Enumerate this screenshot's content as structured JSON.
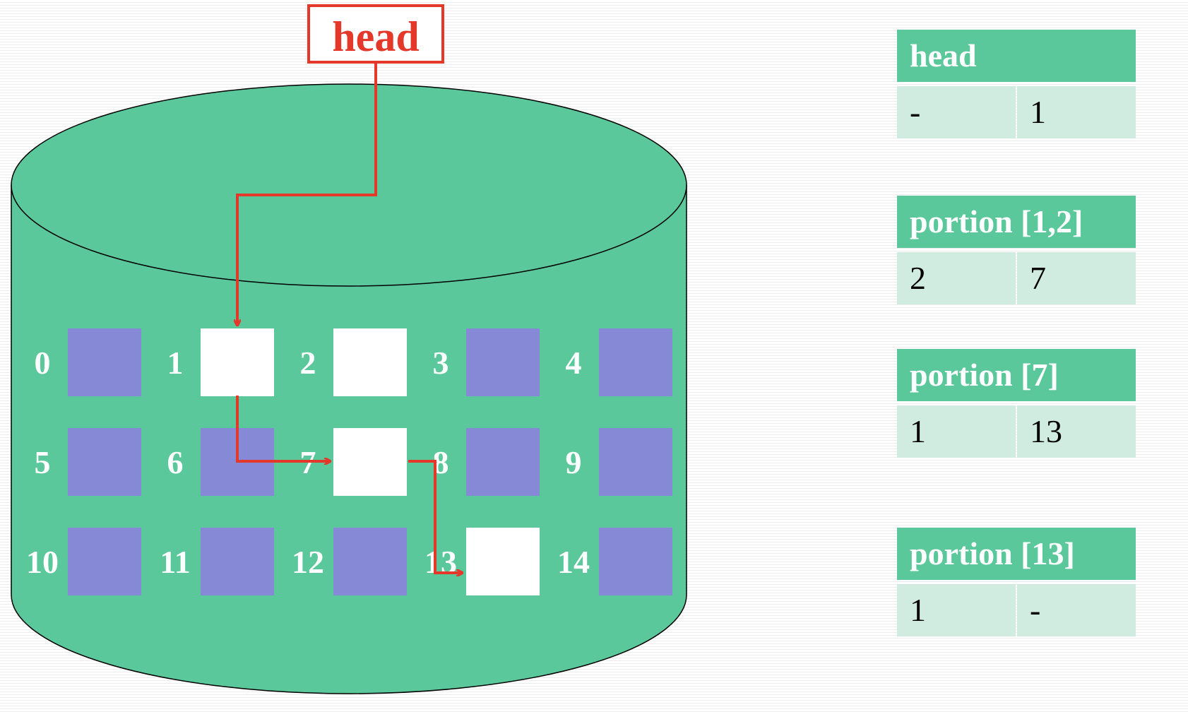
{
  "head_label": "head",
  "blocks": [
    {
      "label": "0",
      "free": false
    },
    {
      "label": "1",
      "free": true
    },
    {
      "label": "2",
      "free": true
    },
    {
      "label": "3",
      "free": false
    },
    {
      "label": "4",
      "free": false
    },
    {
      "label": "5",
      "free": false
    },
    {
      "label": "6",
      "free": false
    },
    {
      "label": "7",
      "free": true
    },
    {
      "label": "8",
      "free": false
    },
    {
      "label": "9",
      "free": false
    },
    {
      "label": "10",
      "free": false
    },
    {
      "label": "11",
      "free": false
    },
    {
      "label": "12",
      "free": false
    },
    {
      "label": "13",
      "free": true
    },
    {
      "label": "14",
      "free": false
    }
  ],
  "tables": [
    {
      "title": "head",
      "left": "-",
      "right": "1"
    },
    {
      "title": "portion [1,2]",
      "left": "2",
      "right": "7"
    },
    {
      "title": "portion [7]",
      "left": "1",
      "right": "13"
    },
    {
      "title": "portion [13]",
      "left": "1",
      "right": "-"
    }
  ],
  "colors": {
    "disk": "#5bc89b",
    "block_used": "#8589d6",
    "block_free": "#ffffff",
    "arrow": "#e3382a",
    "table_header": "#5bc89b",
    "table_cell": "#d0ebdf"
  }
}
